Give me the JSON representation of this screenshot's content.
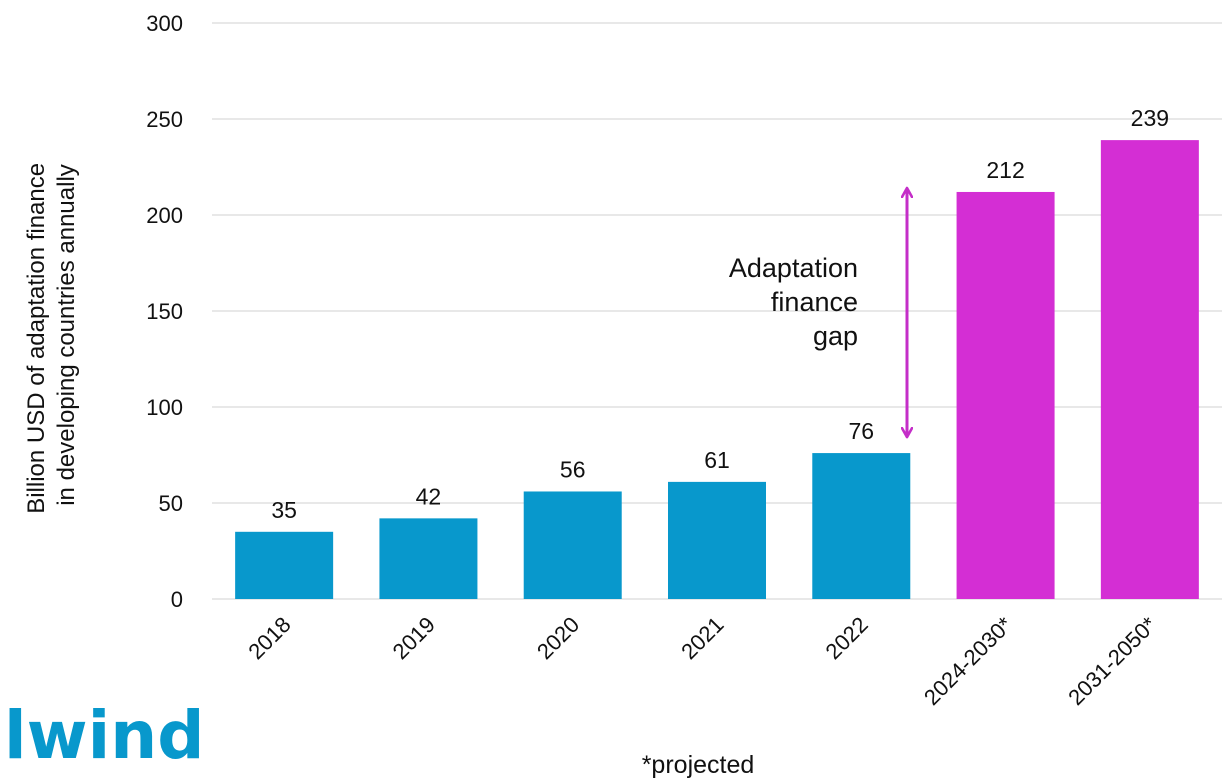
{
  "chart_data": {
    "type": "bar",
    "categories": [
      "2018",
      "2019",
      "2020",
      "2021",
      "2022",
      "2024-2030*",
      "2031-2050*"
    ],
    "values": [
      35,
      42,
      56,
      61,
      76,
      212,
      239
    ],
    "data_labels": [
      "35",
      "42",
      "56",
      "61",
      "76",
      "212",
      "239"
    ],
    "bar_colors": [
      "#0898cc",
      "#0898cc",
      "#0898cc",
      "#0898cc",
      "#0898cc",
      "#d42ed4",
      "#d42ed4"
    ],
    "ylabel_lines": [
      "Billion USD of adaptation  finance",
      "in developing countries annually"
    ],
    "ylim": [
      0,
      300
    ],
    "yticks": [
      0,
      50,
      100,
      150,
      200,
      250,
      300
    ],
    "grid": true,
    "annotation": {
      "lines": [
        "Adaptation",
        "finance",
        "gap"
      ],
      "arrow_from": 76,
      "arrow_to": 212,
      "arrow_color": "#c42ec8"
    },
    "footnote": "*projected"
  },
  "logo": {
    "text": "lwind",
    "color": "#0898cc"
  }
}
